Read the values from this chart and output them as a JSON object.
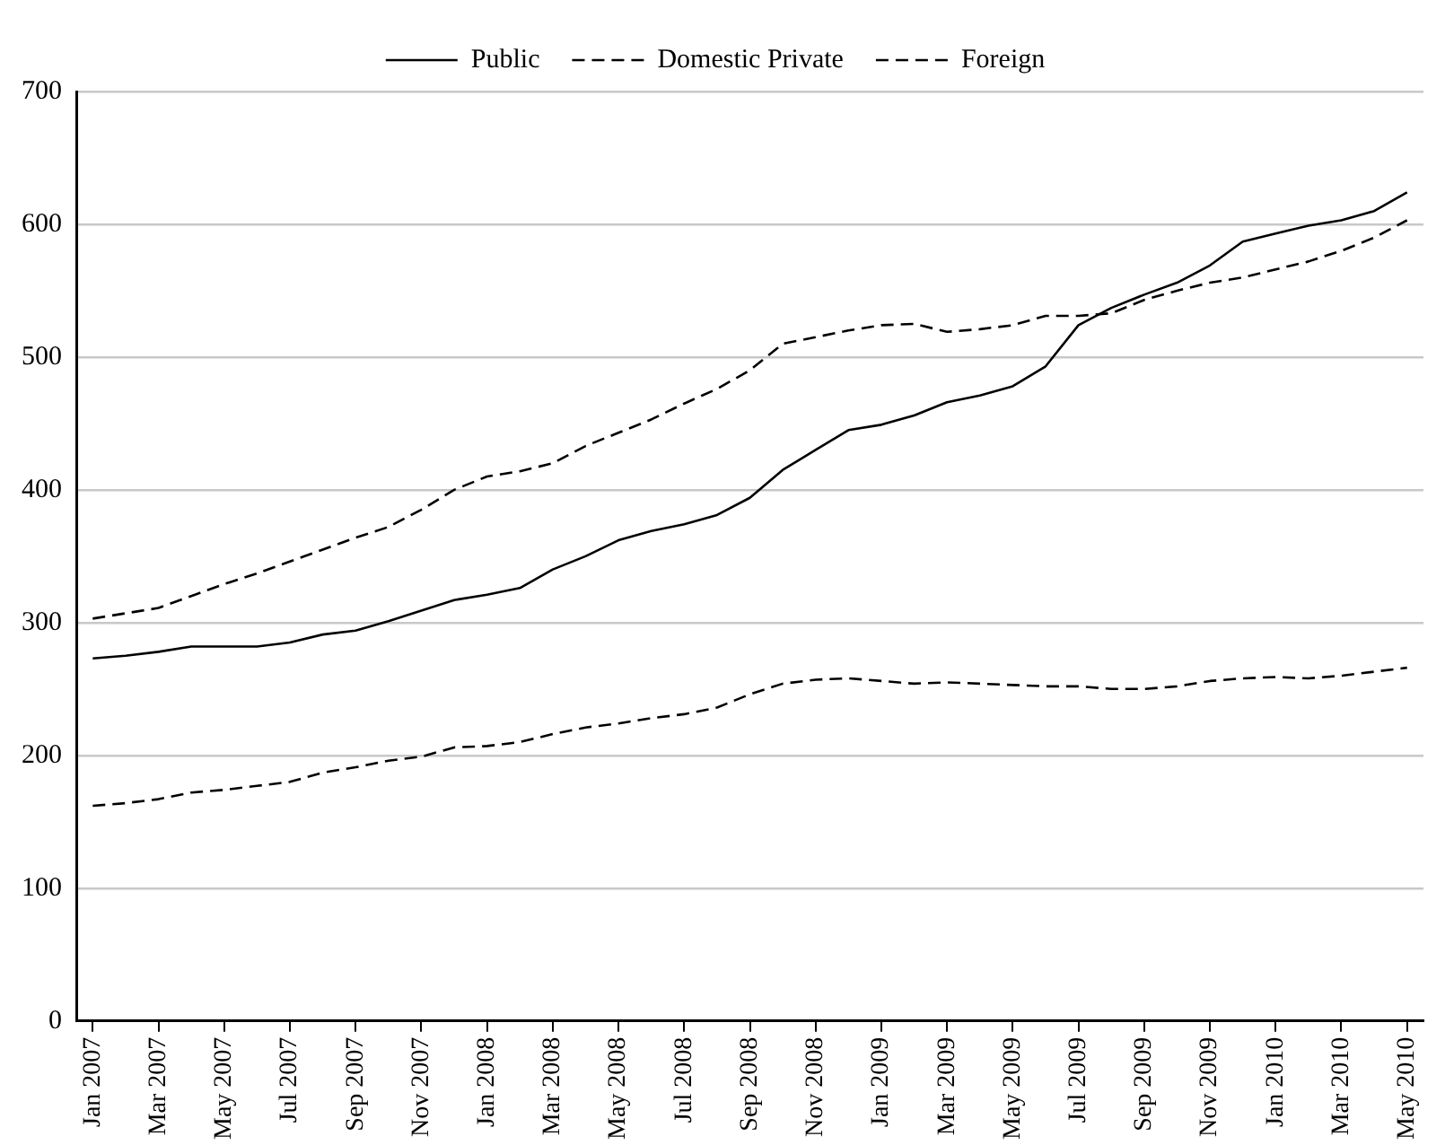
{
  "chart_data": {
    "type": "line",
    "categories": [
      "Jan 2007",
      null,
      "Mar 2007",
      null,
      "May 2007",
      null,
      "Jul 2007",
      null,
      "Sep 2007",
      null,
      "Nov 2007",
      null,
      "Jan 2008",
      null,
      "Mar 2008",
      null,
      "May 2008",
      null,
      "Jul 2008",
      null,
      "Sep 2008",
      null,
      "Nov 2008",
      null,
      "Jan 2009",
      null,
      "Mar 2009",
      null,
      "May 2009",
      null,
      "Jul 2009",
      null,
      "Sep 2009",
      null,
      "Nov 2009",
      null,
      "Jan 2010",
      null,
      "Mar 2010",
      null,
      "May 2010"
    ],
    "series": [
      {
        "name": "Public",
        "color": "#000000",
        "line_style": "solid",
        "values": [
          273,
          275,
          278,
          282,
          282,
          282,
          285,
          291,
          294,
          301,
          309,
          317,
          321,
          326,
          340,
          350,
          362,
          369,
          374,
          381,
          394,
          415,
          430,
          445,
          449,
          456,
          466,
          471,
          478,
          493,
          524,
          537,
          547,
          556,
          569,
          587,
          593,
          599,
          603,
          610,
          624
        ]
      },
      {
        "name": "Domestic Private",
        "color": "#000000",
        "line_style": "dashed",
        "values": [
          303,
          307,
          311,
          320,
          329,
          337,
          346,
          355,
          364,
          372,
          385,
          400,
          410,
          414,
          420,
          433,
          443,
          453,
          465,
          476,
          490,
          510,
          515,
          520,
          524,
          525,
          519,
          521,
          524,
          531,
          531,
          533,
          543,
          550,
          556,
          560,
          566,
          572,
          580,
          590,
          603
        ]
      },
      {
        "name": "Foreign",
        "color": "#000000",
        "line_style": "dashed",
        "values": [
          162,
          164,
          167,
          172,
          174,
          177,
          180,
          187,
          191,
          196,
          199,
          206,
          207,
          210,
          216,
          221,
          224,
          228,
          231,
          236,
          246,
          254,
          257,
          258,
          256,
          254,
          255,
          254,
          253,
          252,
          252,
          250,
          250,
          252,
          256,
          258,
          259,
          258,
          260,
          263,
          266
        ]
      }
    ],
    "ylim": [
      0,
      700
    ],
    "yticks": [
      0,
      100,
      200,
      300,
      400,
      500,
      600,
      700
    ],
    "grid": "y",
    "legend": "top",
    "marker": "none"
  }
}
